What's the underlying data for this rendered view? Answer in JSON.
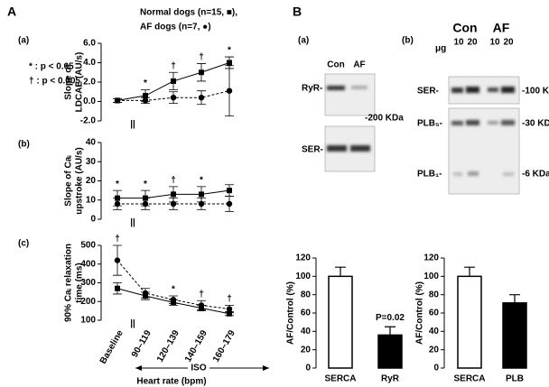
{
  "figure": {
    "panel_a": {
      "letter": "A",
      "legend": [
        "Normal dogs (n=15, ■),",
        "AF dogs (n=7, ●)"
      ],
      "sig_key": [
        "* : p < 0.05",
        "† : p < 0.005"
      ],
      "iso": "ISO",
      "x_label": "Heart rate (bpm)"
    },
    "panel_b": {
      "letter": "B",
      "blot_a": {
        "label": "(a)",
        "lanes": [
          "Con",
          "AF"
        ],
        "rows": [
          "RyR-",
          "SER-"
        ],
        "size": "-200 KDa"
      },
      "blot_b": {
        "label": "(b)",
        "groups": [
          "Con",
          "AF"
        ],
        "unit": "μg",
        "lanes": [
          "10",
          "20",
          "10",
          "20"
        ],
        "rows": [
          "SER-",
          "PLB₅-",
          "PLB₁-"
        ],
        "sizes": [
          "-100 KDa",
          "-30 KDa",
          "-6 KDa"
        ]
      }
    }
  },
  "chart_data": [
    {
      "type": "line",
      "label": "(a)",
      "ylabel": [
        "Slope of",
        "LDCAE (AU/s)"
      ],
      "ylim": [
        -2,
        6
      ],
      "yticks": [
        {
          "value": -2,
          "label": "-2.0"
        },
        {
          "value": 0,
          "label": "0.0"
        },
        {
          "value": 2,
          "label": "2.0"
        },
        {
          "value": 4,
          "label": "4.0"
        },
        {
          "value": 6,
          "label": "6.0"
        }
      ],
      "sig": [
        null,
        "*",
        "†",
        "†",
        "*"
      ],
      "series": [
        {
          "name": "Normal dogs (n=15, ■),",
          "color": "#000000",
          "marker": "square",
          "dashed": false,
          "values": [
            0.1,
            0.6,
            2.1,
            3.0,
            4.0
          ],
          "errors": [
            0.2,
            0.6,
            0.9,
            0.9,
            0.6
          ]
        },
        {
          "name": "AF dogs (n=7, ●)",
          "color": "#000000",
          "marker": "circle",
          "dashed": true,
          "values": [
            0.1,
            0.1,
            0.4,
            0.4,
            1.1
          ],
          "errors": [
            0.2,
            0.3,
            0.6,
            0.7,
            2.6
          ]
        }
      ]
    },
    {
      "type": "line",
      "label": "(b)",
      "ylabel": [
        "Slope of Caᵢ",
        "upstroke (AU/s)"
      ],
      "ylim": [
        0,
        40
      ],
      "yticks": [
        0,
        10,
        20,
        30,
        40
      ],
      "sig": [
        "*",
        "*",
        "†",
        "*",
        null
      ],
      "series": [
        {
          "color": "#000000",
          "marker": "square",
          "dashed": false,
          "values": [
            11,
            11,
            13,
            13,
            15
          ],
          "errors": [
            4,
            4,
            4,
            4,
            3
          ]
        },
        {
          "color": "#000000",
          "marker": "circle",
          "dashed": true,
          "values": [
            8,
            8,
            8,
            8,
            8
          ],
          "errors": [
            3,
            3,
            3,
            3,
            4
          ]
        }
      ]
    },
    {
      "type": "line",
      "label": "(c)",
      "ylabel": [
        "90% Caᵢ relaxation",
        "time (ms)"
      ],
      "categories": [
        "Baseline",
        "90–119",
        "120–139",
        "140–159",
        "160–179"
      ],
      "ylim": [
        100,
        500
      ],
      "yticks": [
        100,
        200,
        300,
        400,
        500
      ],
      "sig": [
        "†",
        null,
        "*",
        "†",
        "†"
      ],
      "series": [
        {
          "color": "#000000",
          "marker": "square",
          "dashed": false,
          "values": [
            270,
            230,
            195,
            165,
            135
          ],
          "errors": [
            30,
            20,
            15,
            15,
            10
          ]
        },
        {
          "color": "#000000",
          "marker": "circle",
          "dashed": true,
          "values": [
            420,
            245,
            210,
            180,
            160
          ],
          "errors": [
            80,
            25,
            20,
            25,
            20
          ]
        }
      ]
    },
    {
      "type": "bar",
      "ylabel": "AF/Control (%)",
      "categories": [
        "SERCA",
        "RyR"
      ],
      "values": [
        100,
        36
      ],
      "errors": [
        10,
        9
      ],
      "colors": [
        "#ffffff",
        "#000000"
      ],
      "annotation": "P=0.02",
      "ylim": [
        0,
        120
      ],
      "yticks": [
        0,
        20,
        40,
        60,
        80,
        100,
        120
      ]
    },
    {
      "type": "bar",
      "ylabel": "AF/Control (%)",
      "categories": [
        "SERCA",
        "PLB"
      ],
      "values": [
        100,
        71
      ],
      "errors": [
        10,
        9
      ],
      "colors": [
        "#ffffff",
        "#000000"
      ],
      "ylim": [
        0,
        120
      ],
      "yticks": [
        0,
        20,
        40,
        60,
        80,
        100,
        120
      ]
    }
  ]
}
